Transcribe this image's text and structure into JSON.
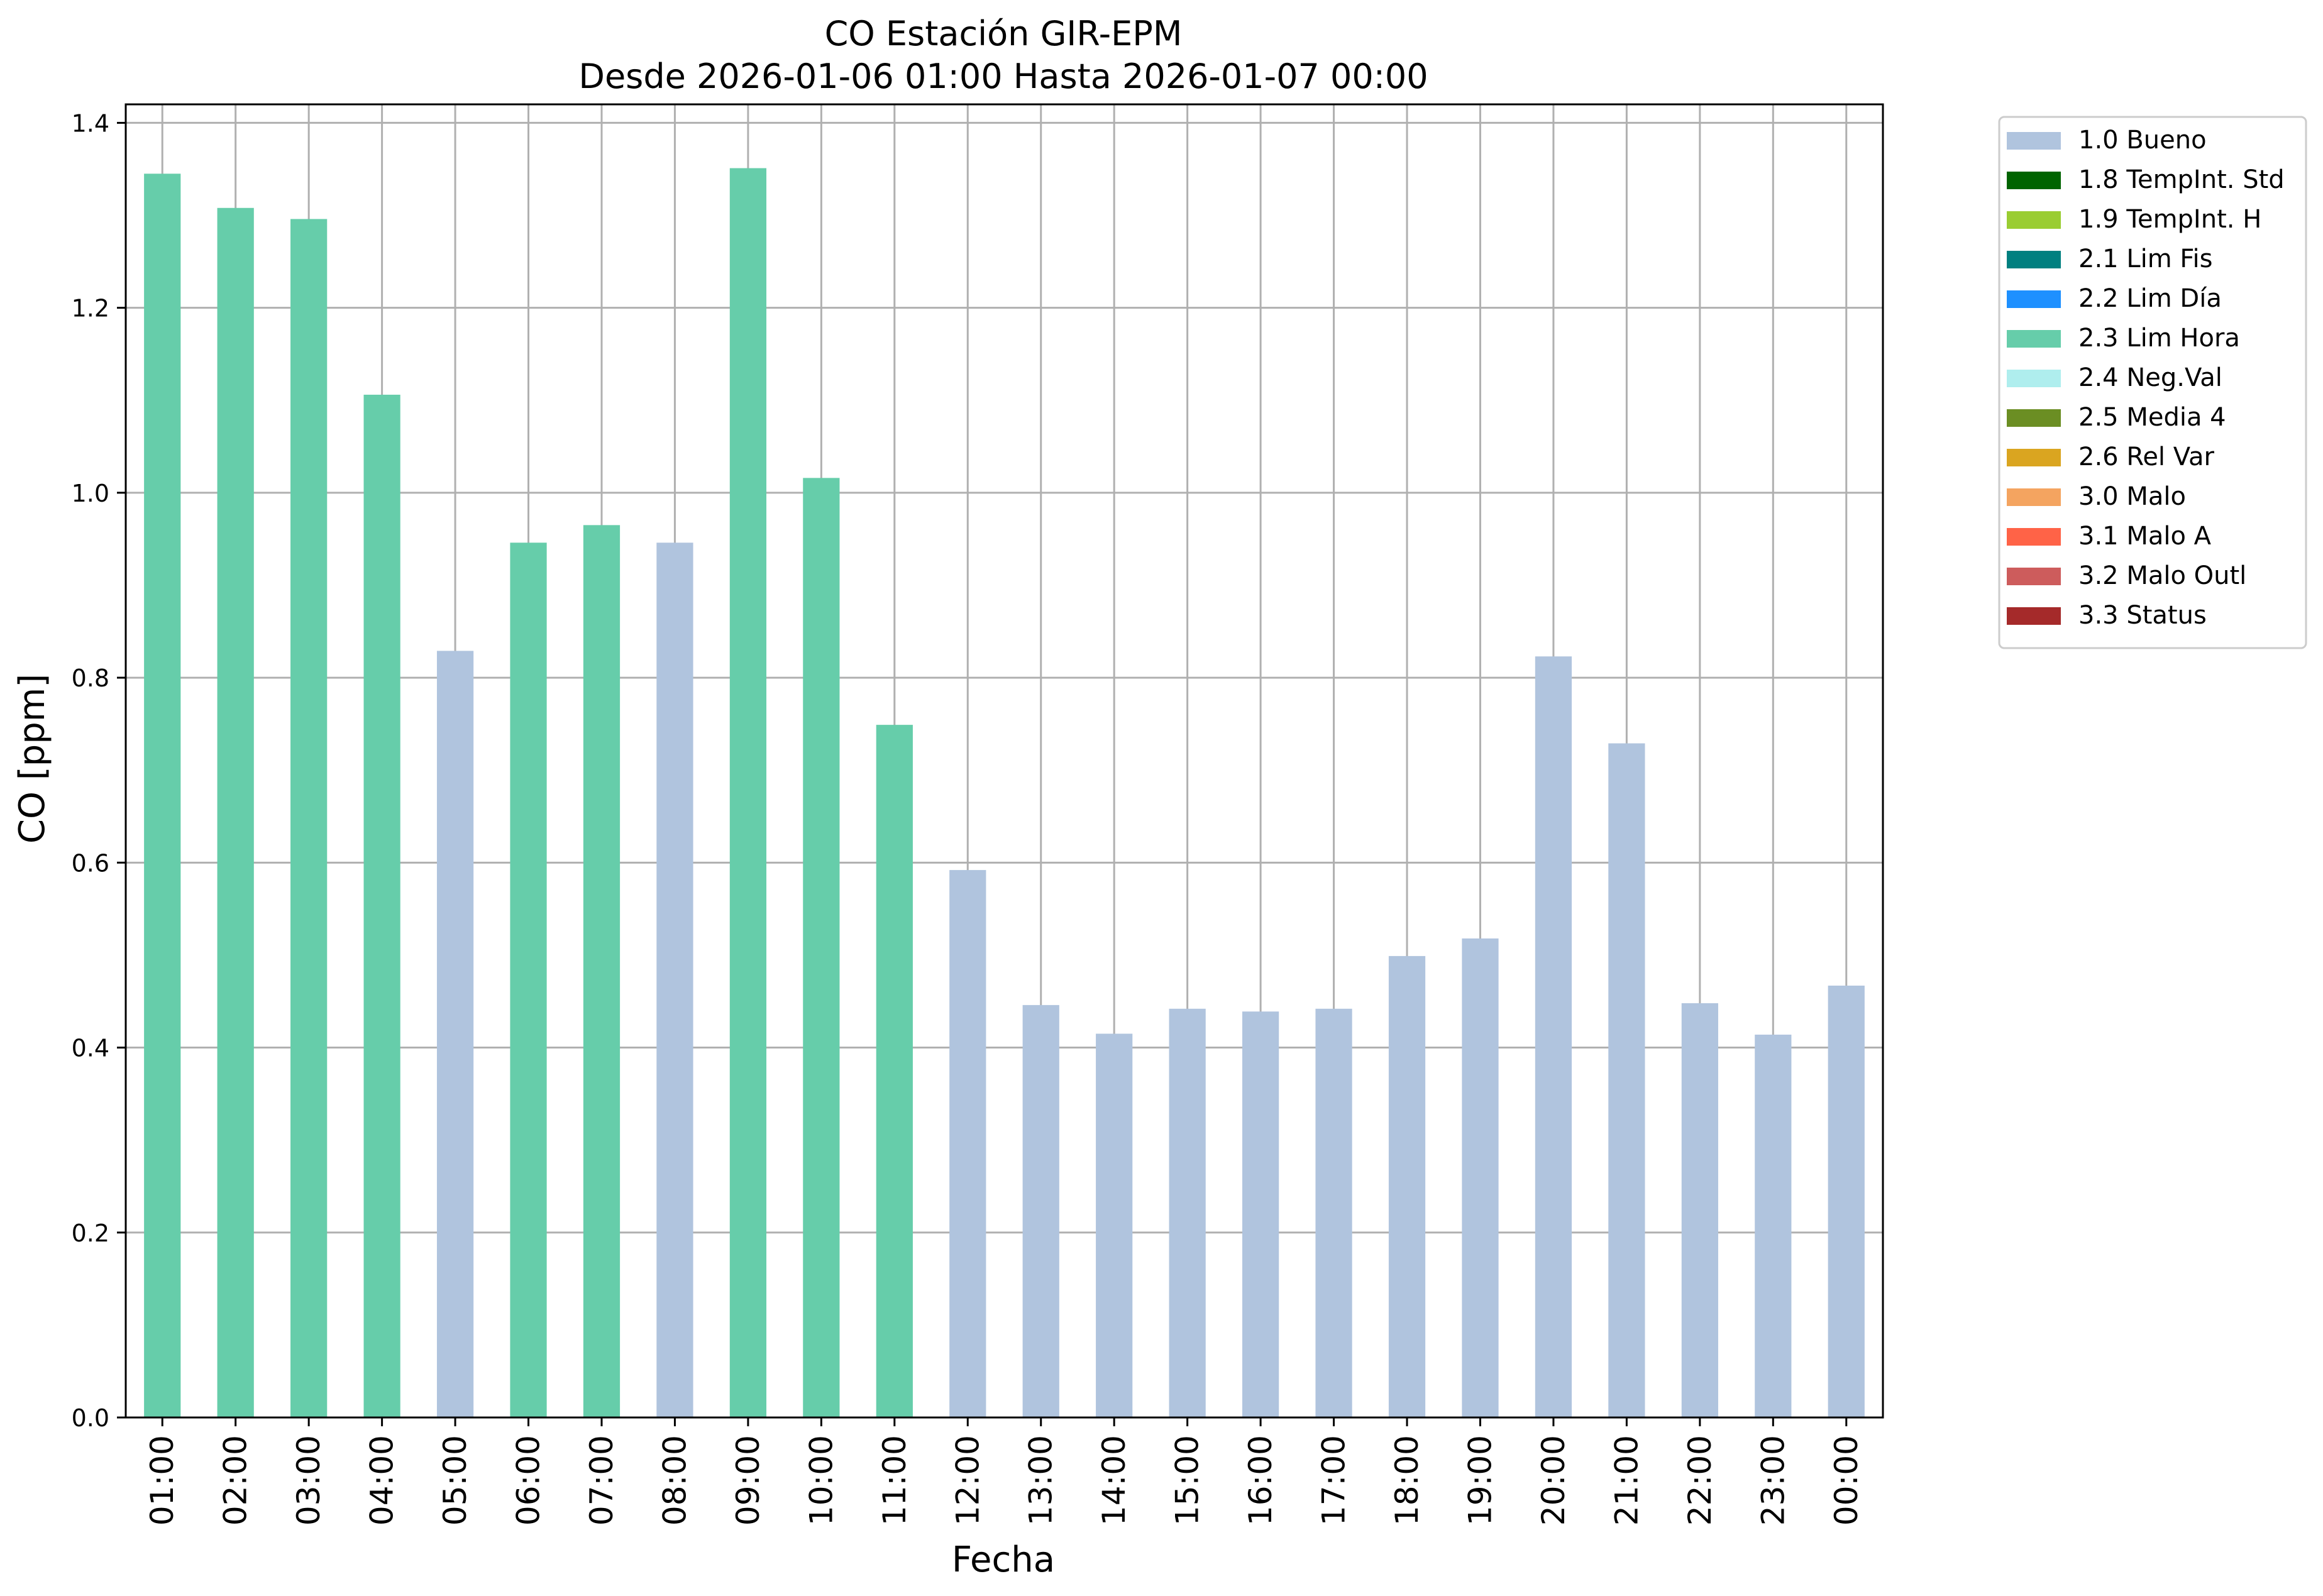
{
  "chart_data": {
    "type": "bar",
    "title_line1": "CO Estación GIR-EPM",
    "title_line2": "Desde 2026-01-06 01:00 Hasta 2026-01-07 00:00",
    "xlabel": "Fecha",
    "ylabel": "CO [ppm]",
    "ylim": [
      0,
      1.42
    ],
    "yticks": [
      0.0,
      0.2,
      0.4,
      0.6,
      0.8,
      1.0,
      1.2,
      1.4
    ],
    "ytick_labels": [
      "0.0",
      "0.2",
      "0.4",
      "0.6",
      "0.8",
      "1.0",
      "1.2",
      "1.4"
    ],
    "grid": true,
    "legend_placement": "outside-top-right",
    "categories": [
      "01:00",
      "02:00",
      "03:00",
      "04:00",
      "05:00",
      "06:00",
      "07:00",
      "08:00",
      "09:00",
      "10:00",
      "11:00",
      "12:00",
      "13:00",
      "14:00",
      "15:00",
      "16:00",
      "17:00",
      "18:00",
      "19:00",
      "20:00",
      "21:00",
      "22:00",
      "23:00",
      "00:00"
    ],
    "values": [
      1.345,
      1.308,
      1.296,
      1.106,
      0.829,
      0.946,
      0.965,
      0.946,
      1.351,
      1.016,
      0.749,
      0.592,
      0.446,
      0.415,
      0.442,
      0.439,
      0.442,
      0.499,
      0.518,
      0.823,
      0.729,
      0.448,
      0.414,
      0.467
    ],
    "flags": [
      "2.3 Lim Hora",
      "2.3 Lim Hora",
      "2.3 Lim Hora",
      "2.3 Lim Hora",
      "1.0 Bueno",
      "2.3 Lim Hora",
      "2.3 Lim Hora",
      "1.0 Bueno",
      "2.3 Lim Hora",
      "2.3 Lim Hora",
      "2.3 Lim Hora",
      "1.0 Bueno",
      "1.0 Bueno",
      "1.0 Bueno",
      "1.0 Bueno",
      "1.0 Bueno",
      "1.0 Bueno",
      "1.0 Bueno",
      "1.0 Bueno",
      "1.0 Bueno",
      "1.0 Bueno",
      "1.0 Bueno",
      "1.0 Bueno",
      "1.0 Bueno"
    ],
    "legend": [
      {
        "label": "1.0 Bueno",
        "color": "#b0c4de"
      },
      {
        "label": "1.8 TempInt. Std",
        "color": "#006400"
      },
      {
        "label": "1.9 TempInt. H",
        "color": "#9acd32"
      },
      {
        "label": "2.1 Lim Fis",
        "color": "#008080"
      },
      {
        "label": "2.2 Lim Día",
        "color": "#1e90ff"
      },
      {
        "label": "2.3 Lim Hora",
        "color": "#66cdaa"
      },
      {
        "label": "2.4 Neg.Val",
        "color": "#afeeee"
      },
      {
        "label": "2.5 Media 4",
        "color": "#6b8e23"
      },
      {
        "label": "2.6 Rel Var",
        "color": "#daa520"
      },
      {
        "label": "3.0 Malo",
        "color": "#f4a460"
      },
      {
        "label": "3.1 Malo A",
        "color": "#ff6347"
      },
      {
        "label": "3.2 Malo Outl",
        "color": "#cd5c5c"
      },
      {
        "label": "3.3 Status",
        "color": "#a52a2a"
      }
    ],
    "grid_color": "#b0b0b0"
  }
}
